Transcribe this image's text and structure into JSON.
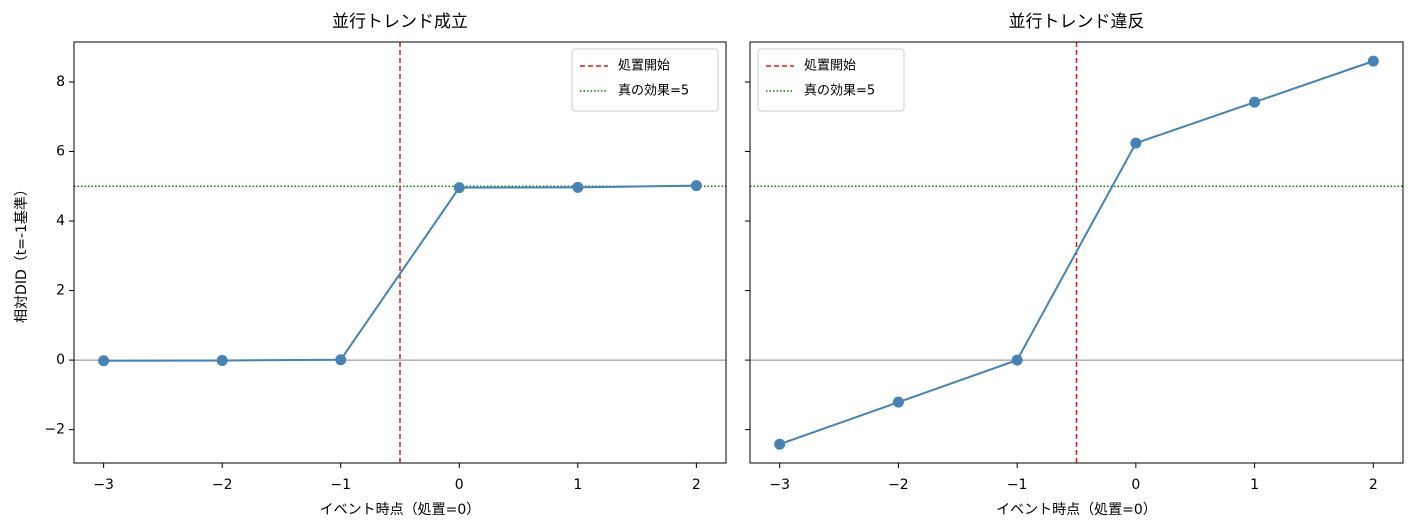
{
  "chart_data": [
    {
      "type": "line",
      "title": "並行トレンド成立",
      "xlabel": "イベント時点（処置=0）",
      "ylabel": "相対DID（t=-1基準）",
      "x": [
        -3,
        -2,
        -1,
        0,
        1,
        2
      ],
      "values": [
        -0.02,
        -0.01,
        0.01,
        4.96,
        4.97,
        5.02
      ],
      "color": "#4682b4",
      "xlim": [
        -3.25,
        2.25
      ],
      "ylim": [
        -2.96,
        9.15
      ],
      "xticks": [
        {
          "value": -3,
          "label": "−3"
        },
        {
          "value": -2,
          "label": "−2"
        },
        {
          "value": -1,
          "label": "−1"
        },
        0,
        1,
        2
      ],
      "yticks": [
        {
          "value": -2,
          "label": "−2"
        },
        0,
        2,
        4,
        6,
        8
      ],
      "vlines": [
        {
          "x": -0.5,
          "label": "処置開始",
          "color": "#e41a1c",
          "style": "dashed"
        }
      ],
      "hlines": [
        {
          "y": 5,
          "label": "真の効果=5",
          "color": "#008000",
          "style": "dotted"
        },
        {
          "y": 0,
          "color": "#888888",
          "style": "solid"
        }
      ],
      "legend_loc": "upper right"
    },
    {
      "type": "line",
      "title": "並行トレンド違反",
      "xlabel": "イベント時点（処置=0）",
      "x": [
        -3,
        -2,
        -1,
        0,
        1,
        2
      ],
      "values": [
        -2.42,
        -1.21,
        0,
        6.24,
        7.42,
        8.6
      ],
      "color": "#4682b4",
      "xlim": [
        -3.25,
        2.25
      ],
      "ylim": [
        -2.96,
        9.15
      ],
      "xticks": [
        {
          "value": -3,
          "label": "−3"
        },
        {
          "value": -2,
          "label": "−2"
        },
        {
          "value": -1,
          "label": "−1"
        },
        0,
        1,
        2
      ],
      "yticks": [
        -2,
        0,
        2,
        4,
        6,
        8
      ],
      "ytick_labels": false,
      "vlines": [
        {
          "x": -0.5,
          "label": "処置開始",
          "color": "#e41a1c",
          "style": "dashed"
        }
      ],
      "hlines": [
        {
          "y": 5,
          "label": "真の効果=5",
          "color": "#008000",
          "style": "dotted"
        },
        {
          "y": 0,
          "color": "#888888",
          "style": "solid"
        }
      ],
      "legend_loc": "upper left"
    }
  ]
}
